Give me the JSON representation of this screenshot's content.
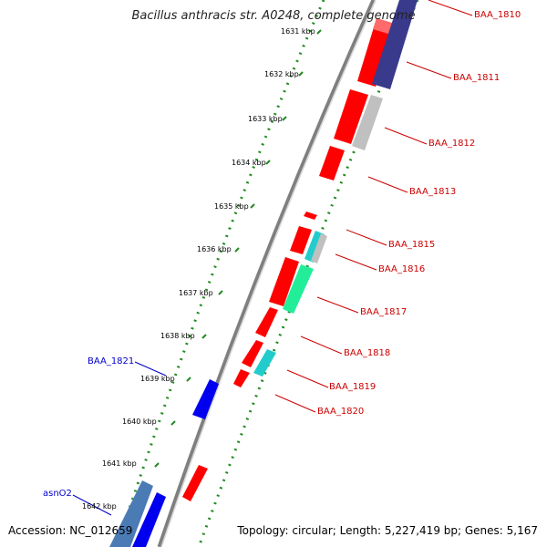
{
  "title": "Bacillus anthracis str. A0248, complete genome",
  "footer": {
    "accession": "Accession: NC_012659",
    "topology": "Topology: circular; Length: 5,227,419 bp; Genes: 5,167"
  },
  "ruler": {
    "ticks": [
      "1631 kbp",
      "1632 kbp",
      "1633 kbp",
      "1634 kbp",
      "1635 kbp",
      "1636 kbp",
      "1637 kbp",
      "1638 kbp",
      "1639 kbp",
      "1640 kbp",
      "1641 kbp",
      "1642 kbp"
    ]
  },
  "colors": {
    "forward_gene": "#ff0000",
    "reverse_gene": "#ff0000",
    "blue_gene": "#0000ee",
    "navy_gene": "#3a3a8c",
    "cyan_gene": "#22cccc",
    "green_gene": "#22ee99",
    "gray_gene": "#c0c0c0",
    "dotted_track": "#228b22",
    "backbone": "#888888",
    "right_label": "#cc0000",
    "left_label": "#0000cc"
  },
  "gene_labels_right": [
    "BAA_1810",
    "BAA_1811",
    "BAA_1812",
    "BAA_1813",
    "BAA_1815",
    "BAA_1816",
    "BAA_1817",
    "BAA_1818",
    "BAA_1819",
    "BAA_1820"
  ],
  "gene_labels_left": [
    "BAA_1821",
    "asnO2"
  ]
}
